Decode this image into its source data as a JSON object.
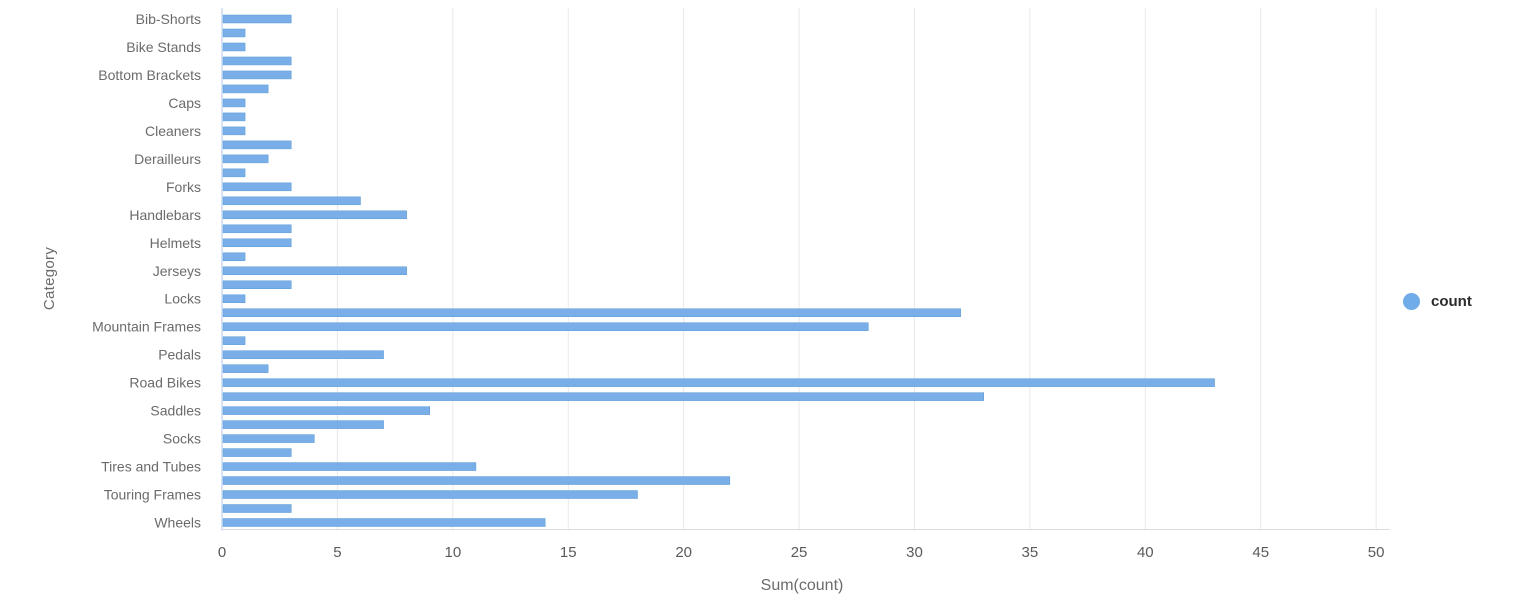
{
  "chart_data": {
    "type": "bar",
    "orientation": "horizontal",
    "title": "",
    "xlabel": "Sum(count)",
    "ylabel": "Category",
    "xlim": [
      0,
      50.6
    ],
    "xticks": [
      0,
      5,
      10,
      15,
      20,
      25,
      30,
      35,
      40,
      45,
      50
    ],
    "grid": true,
    "legend_position": "right",
    "legend": [
      {
        "label": "count",
        "color": "#6FACE8"
      }
    ],
    "rows": [
      {
        "category": "Bib-Shorts",
        "values": [
          3,
          1
        ]
      },
      {
        "category": "Bike Stands",
        "values": [
          1,
          3
        ]
      },
      {
        "category": "Bottom Brackets",
        "values": [
          3,
          2
        ]
      },
      {
        "category": "Caps",
        "values": [
          1,
          1
        ]
      },
      {
        "category": "Cleaners",
        "values": [
          1,
          3
        ]
      },
      {
        "category": "Derailleurs",
        "values": [
          2,
          1
        ]
      },
      {
        "category": "Forks",
        "values": [
          3,
          6
        ]
      },
      {
        "category": "Handlebars",
        "values": [
          8,
          3
        ]
      },
      {
        "category": "Helmets",
        "values": [
          3,
          1
        ]
      },
      {
        "category": "Jerseys",
        "values": [
          8,
          3
        ]
      },
      {
        "category": "Locks",
        "values": [
          1,
          32
        ]
      },
      {
        "category": "Mountain Frames",
        "values": [
          28,
          1
        ]
      },
      {
        "category": "Pedals",
        "values": [
          7,
          2
        ]
      },
      {
        "category": "Road Bikes",
        "values": [
          43,
          33
        ]
      },
      {
        "category": "Saddles",
        "values": [
          9,
          7
        ]
      },
      {
        "category": "Socks",
        "values": [
          4,
          3
        ]
      },
      {
        "category": "Tires and Tubes",
        "values": [
          11,
          22
        ]
      },
      {
        "category": "Touring Frames",
        "values": [
          18,
          3
        ]
      },
      {
        "category": "Wheels",
        "values": [
          14
        ]
      }
    ],
    "colors": {
      "bar": "#79AEE8",
      "bar_edge": "#5B9BD5",
      "grid": "#E9E9E9",
      "zero_axis": "#CBDCF2",
      "bottom_axis": "#DCDCDC",
      "tick_text": "#5a5a5a",
      "category_text": "#6b6b6b"
    }
  }
}
